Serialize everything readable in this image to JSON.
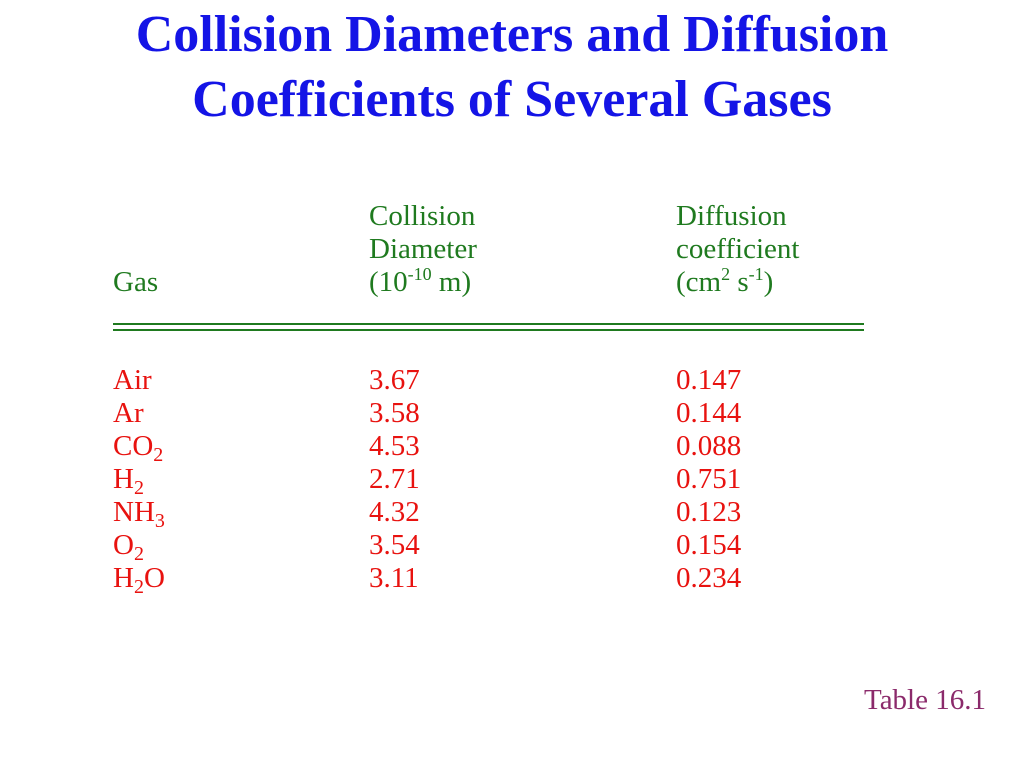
{
  "title": {
    "line1": "Collision Diameters and Diffusion",
    "line2": "Coefficients of Several Gases"
  },
  "header": {
    "gas": "Gas",
    "col2_line1": "Collision",
    "col2_line2": "Diameter",
    "col2_unit_pre": "(10",
    "col2_unit_exp": "-10",
    "col2_unit_post": " m)",
    "col3_line1": "Diffusion",
    "col3_line2": "coefficient",
    "col3_unit_pre": "(cm",
    "col3_unit_exp1": "2",
    "col3_unit_mid": " s",
    "col3_unit_exp2": "-1",
    "col3_unit_post": ")"
  },
  "rows": [
    {
      "gas_main": "Air",
      "gas_sub": "",
      "gas_tail": "",
      "diameter": "3.67",
      "diffusion": "0.147"
    },
    {
      "gas_main": "Ar",
      "gas_sub": "",
      "gas_tail": "",
      "diameter": "3.58",
      "diffusion": "0.144"
    },
    {
      "gas_main": "CO",
      "gas_sub": "2",
      "gas_tail": "",
      "diameter": "4.53",
      "diffusion": "0.088"
    },
    {
      "gas_main": "H",
      "gas_sub": "2",
      "gas_tail": "",
      "diameter": "2.71",
      "diffusion": "0.751"
    },
    {
      "gas_main": "NH",
      "gas_sub": "3",
      "gas_tail": "",
      "diameter": "4.32",
      "diffusion": "0.123"
    },
    {
      "gas_main": "O",
      "gas_sub": "2",
      "gas_tail": "",
      "diameter": "3.54",
      "diffusion": "0.154"
    },
    {
      "gas_main": "H",
      "gas_sub": "2",
      "gas_tail": "O",
      "diameter": "3.11",
      "diffusion": "0.234"
    }
  ],
  "footer": "Table 16.1",
  "colors": {
    "title": "#1414e6",
    "header": "#1f7a1f",
    "values": "#e8120f",
    "footer": "#8b2a6b"
  }
}
